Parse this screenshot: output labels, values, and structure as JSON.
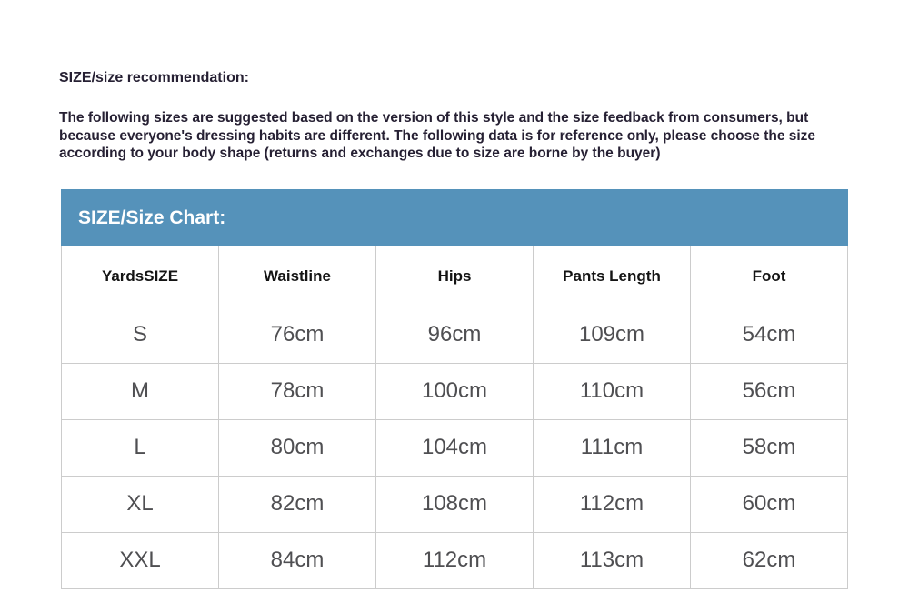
{
  "recommendation": {
    "heading": "SIZE/size recommendation:",
    "body": "The following sizes are suggested based on the version of this style and the size feedback from consumers, but because everyone's dressing habits are different. The following data is for reference only, please choose the size according to your body shape (returns and exchanges due to size are borne by the buyer)"
  },
  "size_chart": {
    "title": "SIZE/Size Chart:",
    "columns": [
      "YardsSIZE",
      "Waistline",
      "Hips",
      "Pants Length",
      "Foot"
    ],
    "rows": [
      {
        "size": "S",
        "values": [
          "76cm",
          "96cm",
          "109cm",
          "54cm"
        ]
      },
      {
        "size": "M",
        "values": [
          "78cm",
          "100cm",
          "110cm",
          "56cm"
        ]
      },
      {
        "size": "L",
        "values": [
          "80cm",
          "104cm",
          "111cm",
          "58cm"
        ]
      },
      {
        "size": "XL",
        "values": [
          "82cm",
          "108cm",
          "112cm",
          "60cm"
        ]
      },
      {
        "size": "XXL",
        "values": [
          "84cm",
          "112cm",
          "113cm",
          "62cm"
        ]
      }
    ]
  },
  "colors": {
    "accent_blue": "#5592ba",
    "heading_text": "#262033",
    "table_data_text": "#4f4f52",
    "table_border": "#cccccc",
    "title_text": "#ffffff"
  },
  "chart_data": {
    "type": "table",
    "title": "SIZE/Size Chart:",
    "columns": [
      "YardsSIZE",
      "Waistline",
      "Hips",
      "Pants Length",
      "Foot"
    ],
    "rows": [
      [
        "S",
        "76cm",
        "96cm",
        "109cm",
        "54cm"
      ],
      [
        "M",
        "78cm",
        "100cm",
        "110cm",
        "56cm"
      ],
      [
        "L",
        "80cm",
        "104cm",
        "111cm",
        "58cm"
      ],
      [
        "XL",
        "82cm",
        "108cm",
        "112cm",
        "60cm"
      ],
      [
        "XXL",
        "84cm",
        "112cm",
        "113cm",
        "62cm"
      ]
    ]
  }
}
